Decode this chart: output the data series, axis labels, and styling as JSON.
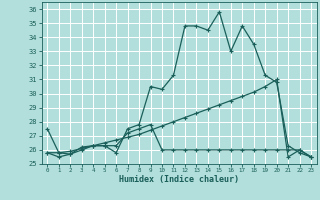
{
  "xlabel": "Humidex (Indice chaleur)",
  "bg_color": "#b2dfdb",
  "grid_color": "#ffffff",
  "line_color": "#1a5f5a",
  "xlim": [
    -0.5,
    23.5
  ],
  "ylim": [
    25.0,
    36.5
  ],
  "yticks": [
    25,
    26,
    27,
    28,
    29,
    30,
    31,
    32,
    33,
    34,
    35,
    36
  ],
  "xticks": [
    0,
    1,
    2,
    3,
    4,
    5,
    6,
    7,
    8,
    9,
    10,
    11,
    12,
    13,
    14,
    15,
    16,
    17,
    18,
    19,
    20,
    21,
    22,
    23
  ],
  "series1_x": [
    0,
    1,
    2,
    3,
    4,
    5,
    6,
    7,
    8,
    9,
    10,
    11,
    12,
    13,
    14,
    15,
    16,
    17,
    18,
    19,
    20,
    21,
    22,
    23
  ],
  "series1_y": [
    27.5,
    25.8,
    25.7,
    26.2,
    26.3,
    26.3,
    25.8,
    27.5,
    27.8,
    30.5,
    30.3,
    31.3,
    34.8,
    34.8,
    34.5,
    35.8,
    33.0,
    34.8,
    33.5,
    31.3,
    30.8,
    26.3,
    25.8,
    25.5
  ],
  "series2_x": [
    0,
    1,
    2,
    3,
    4,
    5,
    6,
    7,
    8,
    9,
    10,
    11,
    12,
    13,
    14,
    15,
    16,
    17,
    18,
    19,
    20,
    21,
    22,
    23
  ],
  "series2_y": [
    25.8,
    25.5,
    25.7,
    26.0,
    26.3,
    26.3,
    26.3,
    27.2,
    27.5,
    27.8,
    26.0,
    26.0,
    26.0,
    26.0,
    26.0,
    26.0,
    26.0,
    26.0,
    26.0,
    26.0,
    26.0,
    26.0,
    26.0,
    25.5
  ],
  "series3_x": [
    0,
    1,
    2,
    3,
    4,
    5,
    6,
    7,
    8,
    9,
    10,
    11,
    12,
    13,
    14,
    15,
    16,
    17,
    18,
    19,
    20,
    21,
    22,
    23
  ],
  "series3_y": [
    25.8,
    25.8,
    25.9,
    26.1,
    26.3,
    26.5,
    26.7,
    26.9,
    27.1,
    27.4,
    27.7,
    28.0,
    28.3,
    28.6,
    28.9,
    29.2,
    29.5,
    29.8,
    30.1,
    30.5,
    31.0,
    25.5,
    26.0,
    25.5
  ]
}
